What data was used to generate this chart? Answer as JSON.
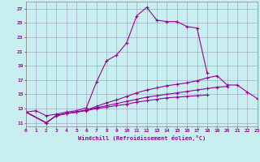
{
  "xlabel": "Windchill (Refroidissement éolien,°C)",
  "bg_color": "#c8eef0",
  "grid_color": "#a0a8c8",
  "line_color": "#990099",
  "x_ticks": [
    0,
    1,
    2,
    3,
    4,
    5,
    6,
    7,
    8,
    9,
    10,
    11,
    12,
    13,
    14,
    15,
    16,
    17,
    18,
    19,
    20,
    21,
    22,
    23
  ],
  "y_ticks": [
    11,
    13,
    15,
    17,
    19,
    21,
    23,
    25,
    27
  ],
  "xlim": [
    0,
    23
  ],
  "ylim": [
    10.5,
    28.0
  ],
  "series": [
    [
      12.5,
      12.7,
      12.0,
      12.2,
      12.5,
      12.7,
      13.1,
      16.7,
      19.7,
      20.5,
      22.2,
      26.0,
      27.2,
      25.4,
      25.2,
      25.2,
      24.5,
      24.3,
      18.0,
      null,
      null,
      null,
      null,
      null
    ],
    [
      12.5,
      null,
      11.0,
      12.0,
      12.3,
      12.5,
      12.8,
      13.3,
      13.8,
      14.2,
      14.7,
      15.2,
      15.6,
      15.9,
      16.2,
      16.4,
      16.6,
      16.9,
      17.3,
      17.6,
      16.3,
      16.3,
      15.3,
      14.4
    ],
    [
      12.5,
      null,
      11.0,
      12.0,
      12.3,
      12.5,
      12.8,
      13.1,
      13.4,
      13.7,
      14.0,
      14.3,
      14.6,
      14.8,
      15.0,
      15.2,
      15.4,
      15.6,
      15.8,
      16.0,
      16.1,
      null,
      null,
      null
    ],
    [
      12.5,
      null,
      11.0,
      12.0,
      12.3,
      12.5,
      12.7,
      13.0,
      13.2,
      13.4,
      13.6,
      13.9,
      14.1,
      14.3,
      14.5,
      14.6,
      14.7,
      14.8,
      14.9,
      null,
      null,
      null,
      null,
      null
    ]
  ]
}
